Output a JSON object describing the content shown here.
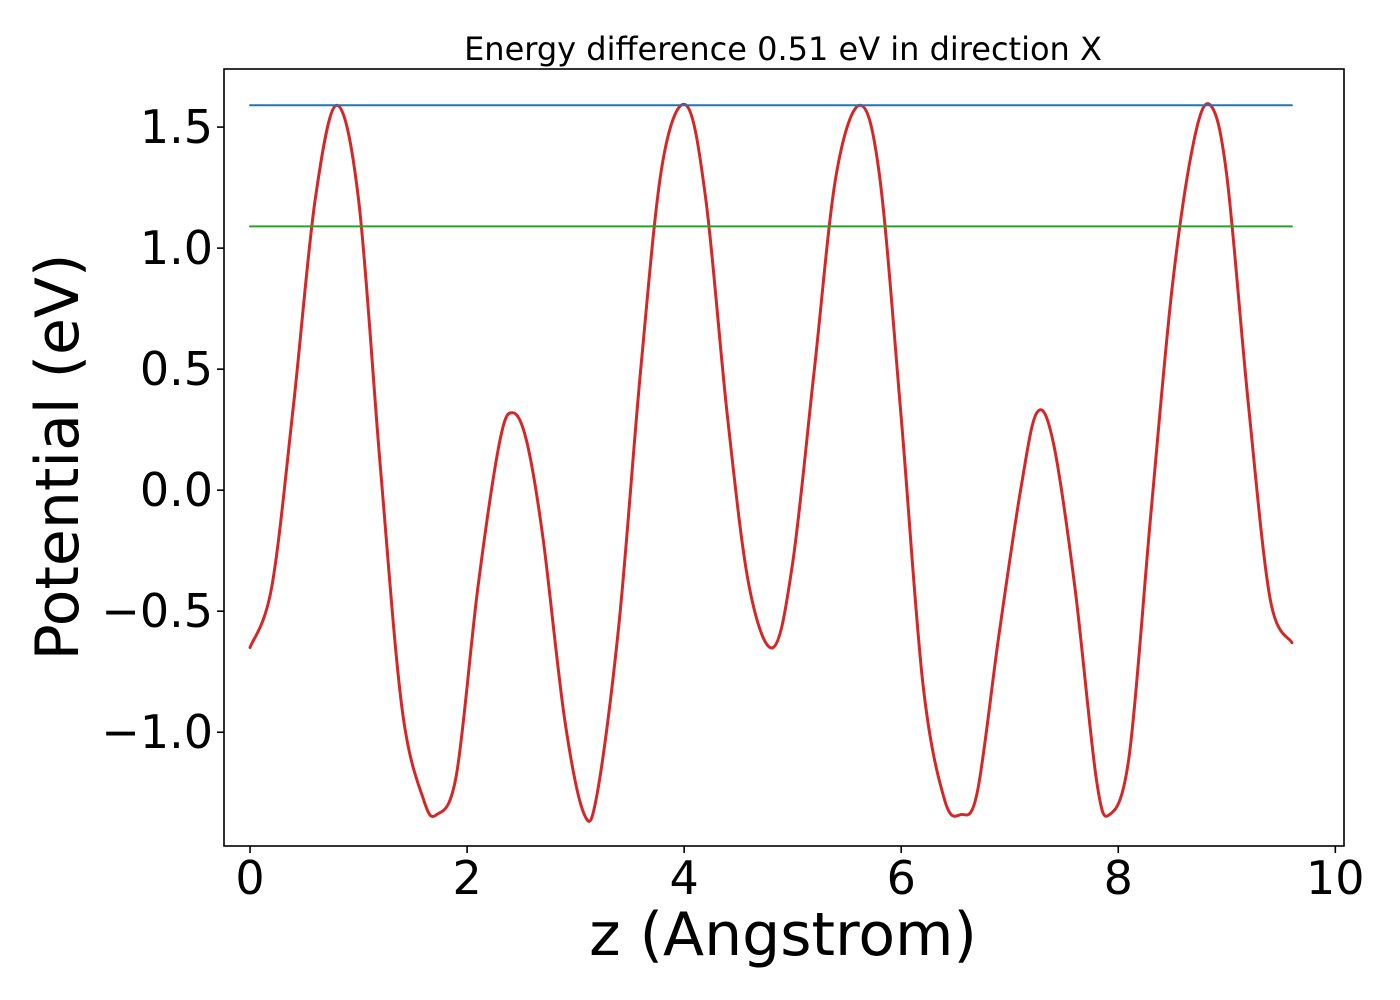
{
  "chart_data": {
    "type": "line",
    "title": "Energy difference 0.51 eV in direction X",
    "xlabel": "z (Angstrom)",
    "ylabel": "Potential (eV)",
    "xlim": [
      -0.24,
      10.08
    ],
    "ylim": [
      -1.47,
      1.74
    ],
    "xticks": [
      0,
      2,
      4,
      6,
      8,
      10
    ],
    "xtick_labels": [
      "0",
      "2",
      "4",
      "6",
      "8",
      "10"
    ],
    "yticks": [
      -1.0,
      -0.5,
      0.0,
      0.5,
      1.0,
      1.5
    ],
    "ytick_labels": [
      "−1.0",
      "−0.5",
      "0.0",
      "0.5",
      "1.0",
      "1.5"
    ],
    "grid": false,
    "series": [
      {
        "color": "#d62728",
        "x": [
          0.0,
          0.2,
          0.4,
          0.6,
          0.8,
          1.0,
          1.2,
          1.4,
          1.6,
          1.72,
          1.9,
          2.1,
          2.3,
          2.42,
          2.55,
          2.7,
          2.9,
          3.08,
          3.2,
          3.4,
          3.6,
          3.8,
          4.02,
          4.2,
          4.4,
          4.6,
          4.82,
          5.0,
          5.2,
          5.4,
          5.62,
          5.8,
          6.0,
          6.2,
          6.4,
          6.55,
          6.7,
          6.9,
          7.1,
          7.25,
          7.4,
          7.6,
          7.8,
          7.92,
          8.1,
          8.3,
          8.5,
          8.7,
          8.85,
          9.0,
          9.2,
          9.4,
          9.6
        ],
        "y": [
          -0.65,
          -0.4,
          0.35,
          1.2,
          1.59,
          1.2,
          0.1,
          -0.9,
          -1.28,
          -1.34,
          -1.18,
          -0.4,
          0.2,
          0.32,
          0.2,
          -0.2,
          -0.95,
          -1.34,
          -1.25,
          -0.55,
          0.5,
          1.35,
          1.59,
          1.2,
          0.3,
          -0.4,
          -0.65,
          -0.3,
          0.5,
          1.3,
          1.59,
          1.3,
          0.3,
          -0.8,
          -1.28,
          -1.34,
          -1.25,
          -0.6,
          0.0,
          0.32,
          0.2,
          -0.4,
          -1.2,
          -1.34,
          -1.1,
          -0.1,
          0.85,
          1.45,
          1.59,
          1.3,
          0.35,
          -0.45,
          -0.63
        ]
      },
      {
        "color": "#1f77b4",
        "x": [
          0.0,
          9.6
        ],
        "y": [
          1.59,
          1.59
        ]
      },
      {
        "color": "#2ca02c",
        "x": [
          0.0,
          9.6
        ],
        "y": [
          1.09,
          1.09
        ]
      }
    ]
  }
}
